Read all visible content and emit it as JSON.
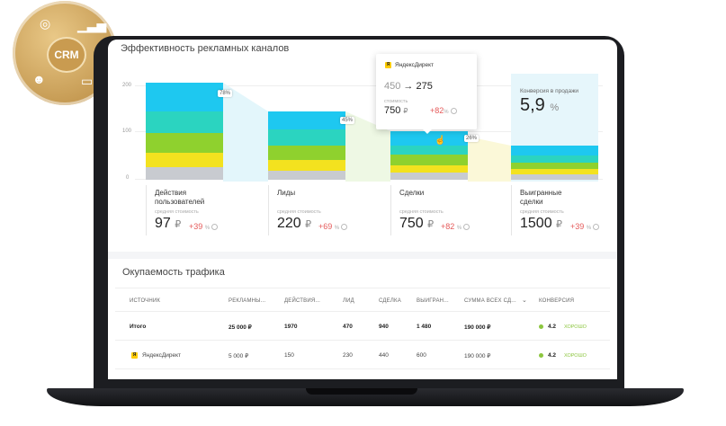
{
  "badge": {
    "label": "CRM",
    "icons": [
      "target-icon",
      "growth-chart-icon",
      "chat-icon",
      "user-icon"
    ]
  },
  "channels_section": {
    "title": "Эффективность рекламных каналов",
    "y_ticks": [
      "200",
      "100",
      "0"
    ],
    "conversion_tags": [
      "78%",
      "45%",
      "26%"
    ],
    "stages": [
      {
        "name": "Действия пользователей",
        "sub": "средняя стоимость",
        "value": "97",
        "currency": "₽",
        "delta": "+39",
        "delta_unit": "%"
      },
      {
        "name": "Лиды",
        "sub": "средняя стоимость",
        "value": "220",
        "currency": "₽",
        "delta": "+69",
        "delta_unit": "%"
      },
      {
        "name": "Сделки",
        "sub": "средняя стоимость",
        "value": "750",
        "currency": "₽",
        "delta": "+82",
        "delta_unit": "%"
      },
      {
        "name": "Выигранные сделки",
        "sub": "средняя стоимость",
        "value": "1500",
        "currency": "₽",
        "delta": "+39",
        "delta_unit": "%"
      }
    ],
    "tooltip": {
      "source": "ЯндексДирект",
      "from": "450",
      "arrow": "→",
      "to": "275",
      "sub": "стоимость",
      "value": "750",
      "currency": "₽",
      "delta": "+82",
      "delta_unit": "%"
    },
    "conversion": {
      "label": "Конверсия в продажи",
      "value": "5,9",
      "unit": "%"
    }
  },
  "traffic_section": {
    "title": "Окупаемость трафика",
    "columns": [
      "ИСТОЧНИК",
      "РЕКЛАМНЫ...",
      "ДЕЙСТВИЯ...",
      "ЛИД",
      "СДЕЛКА",
      "ВЫИГРАН...",
      "СУММА ВСЕХ СД...",
      "КОНВЕРСИЯ"
    ],
    "rows": [
      {
        "source": "Итого",
        "ad": "25 000 ₽",
        "actions": "1970",
        "leads": "470",
        "deals": "940",
        "won": "1 480",
        "sum": "190 000 ₽",
        "conv": "4.2",
        "status": "ХОРОШО"
      },
      {
        "source": "ЯндексДирект",
        "ad": "5 000 ₽",
        "actions": "150",
        "leads": "230",
        "deals": "440",
        "won": "600",
        "sum": "190 000 ₽",
        "conv": "4.2",
        "status": "ХОРОШО"
      }
    ]
  },
  "colors": {
    "cyan": "#1ec8f0",
    "teal": "#2bd4c0",
    "green": "#8fd12e",
    "yellow": "#f3e21f",
    "gray": "#c8cbd0",
    "good": "#8cc63f",
    "negative": "#e55a5a"
  }
}
